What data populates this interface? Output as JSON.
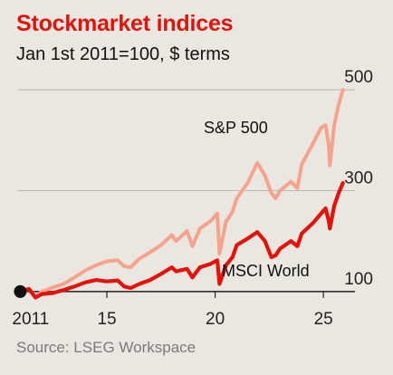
{
  "chart_data": {
    "type": "line",
    "title": "Stockmarket indices",
    "subtitle": "Jan 1st 2011=100, $ terms",
    "source": "Source: LSEG Workspace",
    "x_tick_labels": [
      {
        "year": 2011,
        "label": "2011"
      },
      {
        "year": 2015,
        "label": "15"
      },
      {
        "year": 2020,
        "label": "20"
      },
      {
        "year": 2025,
        "label": "25"
      }
    ],
    "y_tick_labels": [
      {
        "value": 100,
        "label": "100"
      },
      {
        "value": 300,
        "label": "300"
      },
      {
        "value": 500,
        "label": "500"
      }
    ],
    "xlim": [
      2010.9,
      2026.5
    ],
    "ylim": [
      80,
      520
    ],
    "gridlines": [
      300,
      500
    ],
    "baseline": 100,
    "series": [
      {
        "name": "S&P 500",
        "color": "#f5a38c",
        "points": [
          [
            2011.0,
            100
          ],
          [
            2011.4,
            106
          ],
          [
            2011.7,
            90
          ],
          [
            2012.0,
            100
          ],
          [
            2012.5,
            108
          ],
          [
            2013.0,
            115
          ],
          [
            2013.5,
            128
          ],
          [
            2014.0,
            142
          ],
          [
            2014.5,
            152
          ],
          [
            2015.0,
            160
          ],
          [
            2015.5,
            162
          ],
          [
            2015.8,
            150
          ],
          [
            2016.1,
            148
          ],
          [
            2016.5,
            165
          ],
          [
            2017.0,
            178
          ],
          [
            2017.5,
            192
          ],
          [
            2018.0,
            212
          ],
          [
            2018.2,
            200
          ],
          [
            2018.7,
            220
          ],
          [
            2018.95,
            190
          ],
          [
            2019.3,
            225
          ],
          [
            2019.8,
            240
          ],
          [
            2020.1,
            255
          ],
          [
            2020.2,
            175
          ],
          [
            2020.5,
            238
          ],
          [
            2020.8,
            258
          ],
          [
            2021.0,
            285
          ],
          [
            2021.5,
            315
          ],
          [
            2021.95,
            355
          ],
          [
            2022.3,
            330
          ],
          [
            2022.6,
            295
          ],
          [
            2022.8,
            285
          ],
          [
            2023.0,
            300
          ],
          [
            2023.5,
            318
          ],
          [
            2023.8,
            305
          ],
          [
            2024.0,
            352
          ],
          [
            2024.5,
            392
          ],
          [
            2024.9,
            425
          ],
          [
            2025.1,
            430
          ],
          [
            2025.25,
            390
          ],
          [
            2025.3,
            350
          ],
          [
            2025.5,
            430
          ],
          [
            2025.7,
            470
          ],
          [
            2025.9,
            500
          ]
        ]
      },
      {
        "name": "MSCI World",
        "color": "#e3120b",
        "points": [
          [
            2011.0,
            100
          ],
          [
            2011.4,
            105
          ],
          [
            2011.7,
            88
          ],
          [
            2012.0,
            95
          ],
          [
            2012.5,
            97
          ],
          [
            2013.0,
            103
          ],
          [
            2013.5,
            110
          ],
          [
            2014.0,
            118
          ],
          [
            2014.5,
            123
          ],
          [
            2015.0,
            120
          ],
          [
            2015.5,
            122
          ],
          [
            2015.8,
            110
          ],
          [
            2016.1,
            107
          ],
          [
            2016.5,
            115
          ],
          [
            2017.0,
            123
          ],
          [
            2017.5,
            135
          ],
          [
            2018.0,
            148
          ],
          [
            2018.2,
            140
          ],
          [
            2018.7,
            145
          ],
          [
            2018.95,
            128
          ],
          [
            2019.3,
            148
          ],
          [
            2019.8,
            155
          ],
          [
            2020.1,
            162
          ],
          [
            2020.2,
            115
          ],
          [
            2020.5,
            152
          ],
          [
            2020.8,
            168
          ],
          [
            2021.0,
            192
          ],
          [
            2021.5,
            205
          ],
          [
            2021.95,
            218
          ],
          [
            2022.3,
            200
          ],
          [
            2022.6,
            168
          ],
          [
            2022.8,
            172
          ],
          [
            2023.0,
            185
          ],
          [
            2023.5,
            200
          ],
          [
            2023.8,
            190
          ],
          [
            2024.0,
            215
          ],
          [
            2024.5,
            235
          ],
          [
            2024.9,
            255
          ],
          [
            2025.1,
            265
          ],
          [
            2025.25,
            240
          ],
          [
            2025.3,
            225
          ],
          [
            2025.5,
            270
          ],
          [
            2025.7,
            295
          ],
          [
            2025.9,
            315
          ]
        ]
      }
    ]
  }
}
